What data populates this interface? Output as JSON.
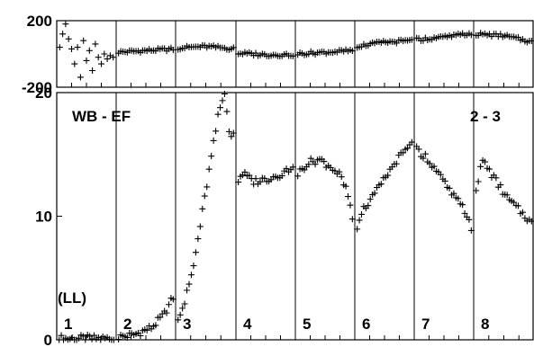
{
  "chart_data": [
    {
      "type": "scatter",
      "role": "phase-panel",
      "ylim": [
        -200,
        200
      ],
      "y_ticks": [
        -200,
        200
      ],
      "grid": true,
      "segments": [
        {
          "id": "1",
          "x0": 0,
          "x1": 1,
          "points": [
            [
              0.05,
              40
            ],
            [
              0.1,
              120
            ],
            [
              0.15,
              180
            ],
            [
              0.2,
              90
            ],
            [
              0.25,
              30
            ],
            [
              0.3,
              -60
            ],
            [
              0.35,
              40
            ],
            [
              0.4,
              -140
            ],
            [
              0.45,
              80
            ],
            [
              0.5,
              -40
            ],
            [
              0.55,
              20
            ],
            [
              0.6,
              -100
            ],
            [
              0.65,
              60
            ],
            [
              0.7,
              -20
            ],
            [
              0.75,
              -60
            ],
            [
              0.8,
              0
            ],
            [
              0.85,
              -30
            ],
            [
              0.9,
              -10
            ],
            [
              0.95,
              -20
            ]
          ]
        },
        {
          "id": "2",
          "x0": 1,
          "x1": 2,
          "trend": [
            [
              0,
              10
            ],
            [
              0.5,
              20
            ],
            [
              1,
              30
            ]
          ]
        },
        {
          "id": "3",
          "x0": 2,
          "x1": 3,
          "trend": [
            [
              0,
              35
            ],
            [
              0.5,
              45
            ],
            [
              1,
              30
            ]
          ]
        },
        {
          "id": "4",
          "x0": 3,
          "x1": 4,
          "trend": [
            [
              0,
              5
            ],
            [
              0.5,
              -5
            ],
            [
              1,
              -5
            ]
          ]
        },
        {
          "id": "5",
          "x0": 4,
          "x1": 5,
          "trend": [
            [
              0,
              0
            ],
            [
              0.5,
              10
            ],
            [
              1,
              20
            ]
          ]
        },
        {
          "id": "6",
          "x0": 5,
          "x1": 6,
          "trend": [
            [
              0,
              45
            ],
            [
              0.5,
              70
            ],
            [
              1,
              80
            ]
          ]
        },
        {
          "id": "7",
          "x0": 6,
          "x1": 7,
          "trend": [
            [
              0,
              85
            ],
            [
              0.5,
              100
            ],
            [
              1,
              125
            ]
          ]
        },
        {
          "id": "8",
          "x0": 7,
          "x1": 8,
          "trend": [
            [
              0,
              120
            ],
            [
              0.5,
              110
            ],
            [
              1,
              70
            ]
          ]
        }
      ]
    },
    {
      "type": "scatter",
      "role": "amplitude-panel",
      "ylim": [
        0,
        20
      ],
      "y_ticks": [
        0,
        10,
        20
      ],
      "grid": true,
      "annotations": [
        "WB - EF",
        "2 - 3",
        "(LL)"
      ],
      "segments": [
        {
          "id": "1",
          "label": "1",
          "x0": 0,
          "x1": 1,
          "trend": [
            [
              0,
              0.1
            ],
            [
              1,
              0.1
            ]
          ]
        },
        {
          "id": "2",
          "label": "2",
          "x0": 1,
          "x1": 2,
          "trend": [
            [
              0,
              0.2
            ],
            [
              0.3,
              0.4
            ],
            [
              0.6,
              1.0
            ],
            [
              0.8,
              2.0
            ],
            [
              1,
              3.8
            ]
          ]
        },
        {
          "id": "3",
          "label": "3",
          "x0": 2,
          "x1": 3,
          "trend": [
            [
              0,
              1.5
            ],
            [
              0.15,
              3
            ],
            [
              0.3,
              6
            ],
            [
              0.45,
              10.5
            ],
            [
              0.6,
              15
            ],
            [
              0.72,
              18.5
            ],
            [
              0.82,
              20
            ],
            [
              0.9,
              16.5
            ]
          ]
        },
        {
          "id": "4",
          "label": "4",
          "x0": 3,
          "x1": 4,
          "trend": [
            [
              0,
              12.5
            ],
            [
              0.1,
              13.5
            ],
            [
              0.3,
              12.8
            ],
            [
              0.5,
              13
            ],
            [
              0.7,
              13.3
            ],
            [
              0.9,
              13.8
            ],
            [
              1,
              14.5
            ]
          ]
        },
        {
          "id": "5",
          "label": "5",
          "x0": 4,
          "x1": 5,
          "trend": [
            [
              0,
              13.2
            ],
            [
              0.2,
              14.3
            ],
            [
              0.4,
              14.6
            ],
            [
              0.6,
              14
            ],
            [
              0.75,
              13.3
            ],
            [
              0.88,
              11.8
            ],
            [
              0.96,
              9.8
            ]
          ]
        },
        {
          "id": "6",
          "label": "6",
          "x0": 5,
          "x1": 6,
          "trend": [
            [
              0,
              8.5
            ],
            [
              0.1,
              10.3
            ],
            [
              0.3,
              11.5
            ],
            [
              0.5,
              13
            ],
            [
              0.7,
              14.5
            ],
            [
              0.9,
              15.5
            ],
            [
              1,
              16
            ]
          ]
        },
        {
          "id": "7",
          "label": "7",
          "x0": 6,
          "x1": 7,
          "trend": [
            [
              0,
              15.5
            ],
            [
              0.2,
              14.8
            ],
            [
              0.4,
              13.5
            ],
            [
              0.6,
              12
            ],
            [
              0.8,
              10.8
            ],
            [
              0.9,
              10
            ],
            [
              1,
              8.5
            ]
          ]
        },
        {
          "id": "8",
          "label": "8",
          "x0": 7,
          "x1": 8,
          "trend": [
            [
              0,
              11.5
            ],
            [
              0.15,
              14.5
            ],
            [
              0.35,
              13
            ],
            [
              0.55,
              11.5
            ],
            [
              0.75,
              10.5
            ],
            [
              0.9,
              9.8
            ],
            [
              1,
              9.2
            ]
          ]
        }
      ]
    }
  ]
}
